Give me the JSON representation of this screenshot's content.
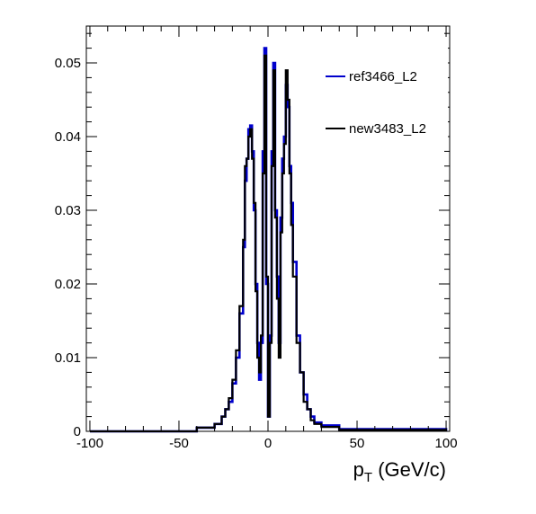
{
  "chart_data": {
    "type": "line",
    "title": "",
    "xlabel_main": "p",
    "xlabel_sub": "T",
    "xlabel_rest": " (GeV/c)",
    "xlim": [
      -102,
      102
    ],
    "ylim": [
      0,
      0.055
    ],
    "x_ticks": [
      -100,
      -50,
      0,
      50,
      100
    ],
    "x_tick_labels": [
      "-100",
      "-50",
      "0",
      "50",
      "100"
    ],
    "y_ticks": [
      0,
      0.01,
      0.02,
      0.03,
      0.04,
      0.05
    ],
    "y_tick_labels": [
      "0",
      "0.01",
      "0.02",
      "0.03",
      "0.04",
      "0.05"
    ],
    "grid": false,
    "legend_position": "top-right",
    "series": [
      {
        "name": "ref3466_L2",
        "color": "#0000cc",
        "x": [
          -100,
          -40,
          -30,
          -26,
          -24,
          -22,
          -20,
          -18,
          -16,
          -14,
          -13,
          -12,
          -11,
          -10,
          -9,
          -8,
          -7,
          -6,
          -5,
          -4,
          -3,
          -2,
          -1,
          0,
          1,
          2,
          3,
          4,
          5,
          6,
          7,
          8,
          9,
          10,
          11,
          12,
          13,
          14,
          16,
          18,
          20,
          22,
          24,
          26,
          30,
          40,
          100
        ],
        "y": [
          0,
          0.0005,
          0.001,
          0.002,
          0.003,
          0.004,
          0.0065,
          0.01,
          0.016,
          0.025,
          0.034,
          0.037,
          0.041,
          0.0415,
          0.038,
          0.03,
          0.02,
          0.012,
          0.007,
          0.012,
          0.038,
          0.052,
          0.02,
          0.002,
          0.013,
          0.038,
          0.05,
          0.03,
          0.021,
          0.012,
          0.029,
          0.037,
          0.04,
          0.047,
          0.044,
          0.036,
          0.031,
          0.023,
          0.013,
          0.008,
          0.005,
          0.003,
          0.002,
          0.0012,
          0.0008,
          0.0003,
          0
        ]
      },
      {
        "name": "new3483_L2",
        "color": "#000000",
        "x": [
          -100,
          -40,
          -30,
          -26,
          -24,
          -22,
          -20,
          -18,
          -16,
          -14,
          -13,
          -12,
          -11,
          -10,
          -9,
          -8,
          -7,
          -6,
          -5,
          -4,
          -3,
          -2,
          -1,
          0,
          1,
          2,
          3,
          4,
          5,
          6,
          7,
          8,
          9,
          10,
          11,
          12,
          13,
          14,
          16,
          18,
          20,
          22,
          24,
          26,
          30,
          40,
          100
        ],
        "y": [
          0,
          0.0005,
          0.001,
          0.002,
          0.003,
          0.0045,
          0.007,
          0.011,
          0.017,
          0.026,
          0.036,
          0.037,
          0.04,
          0.041,
          0.037,
          0.031,
          0.019,
          0.01,
          0.008,
          0.013,
          0.035,
          0.051,
          0.021,
          0.002,
          0.012,
          0.036,
          0.049,
          0.029,
          0.018,
          0.01,
          0.027,
          0.035,
          0.039,
          0.049,
          0.045,
          0.035,
          0.028,
          0.021,
          0.012,
          0.008,
          0.004,
          0.003,
          0.0015,
          0.001,
          0.0006,
          0.0002,
          0
        ]
      }
    ]
  }
}
